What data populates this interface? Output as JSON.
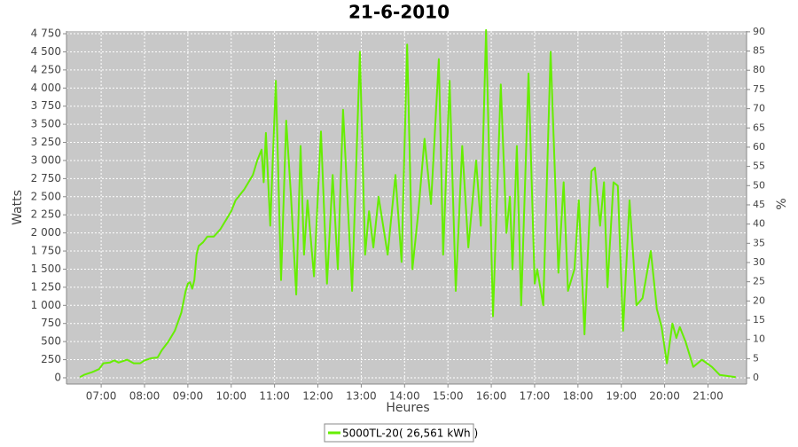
{
  "chart_data": {
    "type": "line",
    "title": "21-6-2010",
    "xlabel": "Heures",
    "ylabel": "Watts",
    "y2label": "%",
    "grid": true,
    "legend": "bottom",
    "xlim": [
      6.2,
      21.89
    ],
    "xticks": [
      {
        "value": 7,
        "label": "07:00"
      },
      {
        "value": 8,
        "label": "08:00"
      },
      {
        "value": 9,
        "label": "09:00"
      },
      {
        "value": 10,
        "label": "10:00"
      },
      {
        "value": 11,
        "label": "11:00"
      },
      {
        "value": 12,
        "label": "12:00"
      },
      {
        "value": 13,
        "label": "13:00"
      },
      {
        "value": 14,
        "label": "14:00"
      },
      {
        "value": 15,
        "label": "15:00"
      },
      {
        "value": 16,
        "label": "16:00"
      },
      {
        "value": 17,
        "label": "17:00"
      },
      {
        "value": 18,
        "label": "18:00"
      },
      {
        "value": 19,
        "label": "19:00"
      },
      {
        "value": 20,
        "label": "20:00"
      },
      {
        "value": 21,
        "label": "21:00"
      }
    ],
    "ylim": [
      -86,
      4787
    ],
    "yticks": [
      0,
      250,
      500,
      750,
      {
        "value": 1000,
        "label": "1 000"
      },
      {
        "value": 1250,
        "label": "1 250"
      },
      {
        "value": 1500,
        "label": "1 500"
      },
      {
        "value": 1750,
        "label": "1 750"
      },
      {
        "value": 2000,
        "label": "2 000"
      },
      {
        "value": 2250,
        "label": "2 250"
      },
      {
        "value": 2500,
        "label": "2 500"
      },
      {
        "value": 2750,
        "label": "2 750"
      },
      {
        "value": 3000,
        "label": "3 000"
      },
      {
        "value": 3250,
        "label": "3 250"
      },
      {
        "value": 3500,
        "label": "3 500"
      },
      {
        "value": 3750,
        "label": "3 750"
      },
      {
        "value": 4000,
        "label": "4 000"
      },
      {
        "value": 4250,
        "label": "4 250"
      },
      {
        "value": 4500,
        "label": "4 500"
      },
      {
        "value": 4750,
        "label": "4 750"
      }
    ],
    "y2lim": [
      -1.6,
      90.2
    ],
    "y2ticks": [
      0,
      5,
      10,
      15,
      20,
      25,
      30,
      35,
      40,
      45,
      50,
      55,
      60,
      65,
      70,
      75,
      80,
      85,
      90
    ],
    "x": [
      6.51,
      6.6,
      6.8,
      6.95,
      7.05,
      7.2,
      7.3,
      7.4,
      7.5,
      7.6,
      7.75,
      7.9,
      8.0,
      8.15,
      8.3,
      8.4,
      8.55,
      8.7,
      8.85,
      8.95,
      9.0,
      9.05,
      9.1,
      9.15,
      9.2,
      9.25,
      9.35,
      9.45,
      9.6,
      9.75,
      9.9,
      10.0,
      10.1,
      10.3,
      10.5,
      10.6,
      10.7,
      10.75,
      10.8,
      10.9,
      11.03,
      11.15,
      11.27,
      11.38,
      11.5,
      11.6,
      11.68,
      11.76,
      11.91,
      12.07,
      12.21,
      12.34,
      12.46,
      12.58,
      12.79,
      12.97,
      13.09,
      13.18,
      13.28,
      13.4,
      13.61,
      13.79,
      13.93,
      14.06,
      14.18,
      14.32,
      14.46,
      14.61,
      14.79,
      14.89,
      15.04,
      15.18,
      15.33,
      15.47,
      15.65,
      15.76,
      15.88,
      16.04,
      16.22,
      16.35,
      16.43,
      16.49,
      16.59,
      16.69,
      16.86,
      17.0,
      17.06,
      17.2,
      17.37,
      17.47,
      17.55,
      17.67,
      17.77,
      17.92,
      18.02,
      18.15,
      18.31,
      18.39,
      18.51,
      18.6,
      18.68,
      18.82,
      18.92,
      19.04,
      19.19,
      19.35,
      19.49,
      19.68,
      19.82,
      19.93,
      20.05,
      20.18,
      20.27,
      20.35,
      20.48,
      20.66,
      20.86,
      21.09,
      21.27,
      21.64
    ],
    "series": [
      {
        "name": "5000TL-20( 26,561 kWh )",
        "color": "#66ee00",
        "values": [
          10,
          40,
          80,
          120,
          200,
          210,
          240,
          210,
          230,
          250,
          200,
          200,
          240,
          270,
          280,
          380,
          500,
          650,
          900,
          1200,
          1300,
          1320,
          1230,
          1350,
          1700,
          1820,
          1870,
          1950,
          1950,
          2050,
          2200,
          2300,
          2450,
          2600,
          2800,
          3000,
          3150,
          2700,
          3380,
          2100,
          4100,
          1350,
          3550,
          2500,
          1150,
          3200,
          1700,
          2450,
          1400,
          3400,
          1300,
          2800,
          1500,
          3700,
          1200,
          4500,
          1700,
          2300,
          1800,
          2500,
          1700,
          2800,
          1600,
          4600,
          1500,
          2300,
          3300,
          2400,
          4400,
          1700,
          4100,
          1200,
          3200,
          1800,
          3000,
          2100,
          4800,
          850,
          4050,
          2000,
          2500,
          1500,
          3200,
          1000,
          4200,
          1300,
          1500,
          1000,
          4500,
          2800,
          1450,
          2700,
          1200,
          1500,
          2450,
          600,
          2850,
          2900,
          2100,
          2700,
          1250,
          2700,
          2650,
          650,
          2450,
          1000,
          1100,
          1750,
          950,
          700,
          200,
          750,
          550,
          700,
          500,
          150,
          250,
          150,
          40,
          10
        ]
      }
    ]
  }
}
